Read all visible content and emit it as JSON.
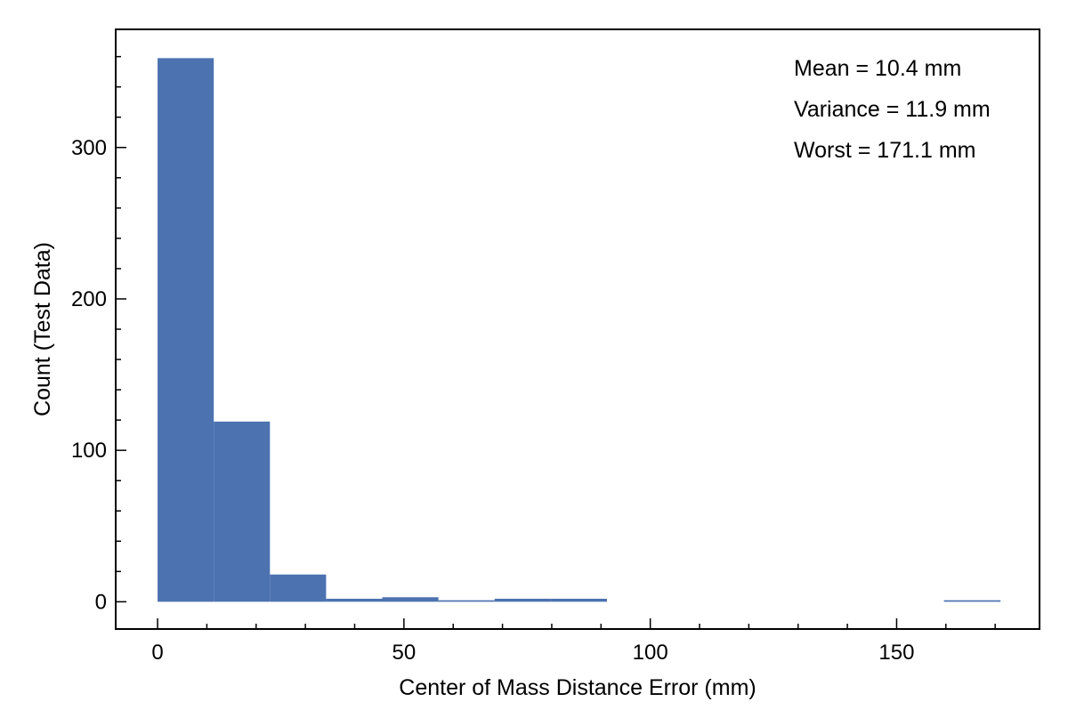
{
  "chart_data": {
    "type": "bar",
    "title": "",
    "xlabel": "Center of Mass Distance Error (mm)",
    "ylabel": "Count (Test Data)",
    "xlim": [
      -8.5,
      179
    ],
    "ylim": [
      -18,
      378
    ],
    "xticks": [
      0,
      50,
      100,
      150
    ],
    "xtick_labels": [
      "0",
      "50",
      "100",
      "150"
    ],
    "yticks": [
      0,
      100,
      200,
      300
    ],
    "ytick_labels": [
      "0",
      "100",
      "200",
      "300"
    ],
    "bin_edges": [
      0,
      11.4,
      22.8,
      34.2,
      45.6,
      57.0,
      68.4,
      79.8,
      91.2,
      102.6,
      114.0,
      125.4,
      136.8,
      148.2,
      159.6,
      171.1
    ],
    "values": [
      359,
      119,
      18,
      2,
      3,
      1,
      2,
      2,
      0,
      0,
      0,
      0,
      0,
      0,
      1
    ],
    "color": "#4c72b0",
    "grid": false,
    "annotations": [
      "Mean = 10.4 mm",
      "Variance = 11.9 mm",
      "Worst = 171.1 mm"
    ]
  }
}
